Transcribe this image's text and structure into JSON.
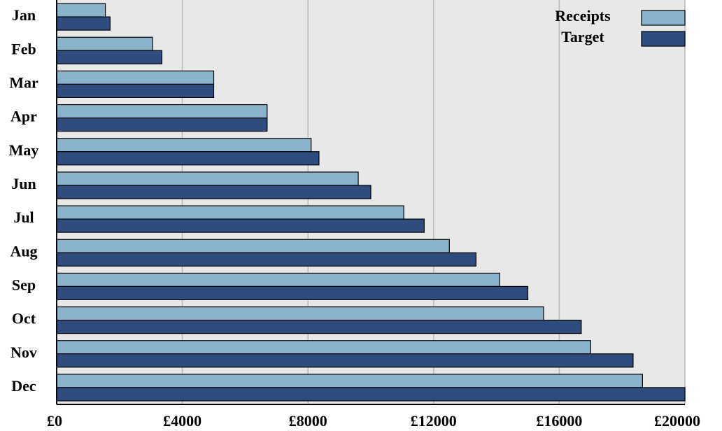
{
  "chart_data": {
    "type": "hbar",
    "categories": [
      "Jan",
      "Feb",
      "Mar",
      "Apr",
      "May",
      "Jun",
      "Jul",
      "Aug",
      "Sep",
      "Oct",
      "Nov",
      "Dec"
    ],
    "series": [
      {
        "name": "Receipts",
        "color": "#8ab4cc",
        "values": [
          1550,
          3050,
          5000,
          6700,
          8100,
          9600,
          11050,
          12500,
          14100,
          15500,
          17000,
          18650
        ]
      },
      {
        "name": "Target",
        "color": "#2e4d7e",
        "values": [
          1700,
          3350,
          5000,
          6700,
          8350,
          10000,
          11700,
          13350,
          15000,
          16700,
          18350,
          20000
        ]
      }
    ],
    "xlim": [
      0,
      20000
    ],
    "xticks": [
      {
        "value": 0,
        "label": "£0"
      },
      {
        "value": 4000,
        "label": "£4000"
      },
      {
        "value": 8000,
        "label": "£8000"
      },
      {
        "value": 12000,
        "label": "£12000"
      },
      {
        "value": 16000,
        "label": "£16000"
      },
      {
        "value": 20000,
        "label": "£20000"
      }
    ],
    "grid": true,
    "legend": "upper right"
  }
}
